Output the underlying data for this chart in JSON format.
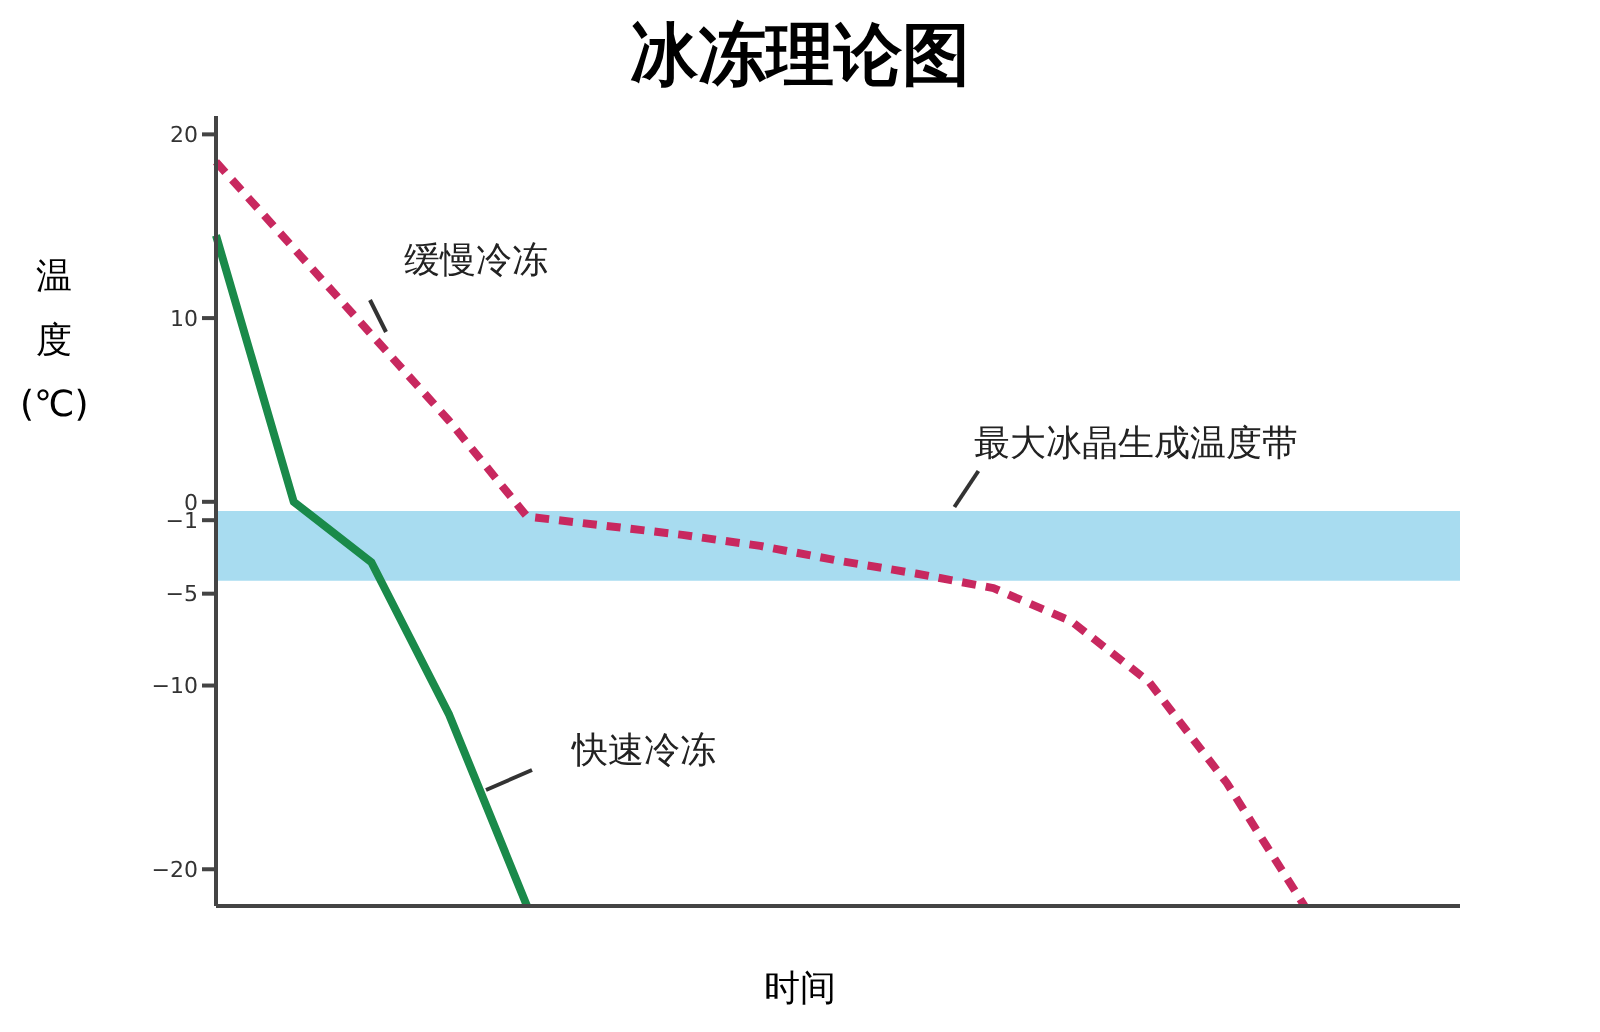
{
  "chart_data": {
    "type": "line",
    "title": "冰冻理论图",
    "xlabel": "时间",
    "ylabel": "温度(℃)",
    "categories": [
      null,
      null,
      null,
      null,
      null,
      null,
      null,
      null,
      null,
      null,
      null,
      null,
      null,
      null,
      null,
      null,
      null
    ],
    "ylim": [
      -22,
      21
    ],
    "yticks": [
      20,
      10,
      0,
      -1,
      -5,
      -10,
      -20
    ],
    "tick_labels": "y",
    "marker": "none",
    "bands": [
      {
        "axis": "y",
        "from": -0.5,
        "to": -4.3,
        "label": "最大冰晶生成温度带",
        "color": "#a8dcf0"
      }
    ],
    "series": [
      {
        "color": "#c8285f",
        "line_style": "dashed",
        "values": [
          18.5,
          13.8,
          9.1,
          4.4,
          -0.8,
          -1.3,
          -1.8,
          -2.4,
          -3.2,
          -3.9,
          -4.7,
          -6.5,
          -9.8,
          -15.3,
          -22,
          null,
          null
        ]
      },
      {
        "color": "#1a8a4a",
        "line_style": "solid",
        "values": [
          14.5,
          0,
          -3.3,
          -11.6,
          -22,
          null,
          null,
          null,
          null,
          null,
          null,
          null,
          null,
          null,
          null,
          null,
          null
        ]
      }
    ],
    "annotations": [
      "缓慢冷冻",
      "快速冷冻"
    ]
  }
}
